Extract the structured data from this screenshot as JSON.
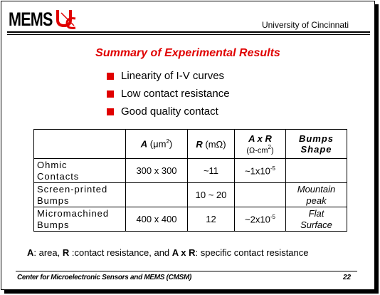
{
  "header": {
    "logo": "MEMS",
    "institution": "University of Cincinnati"
  },
  "title": "Summary of Experimental Results",
  "bullets": [
    "Linearity of I-V curves",
    "Low contact resistance",
    "Good quality contact"
  ],
  "table": {
    "columns": [
      {
        "symbol": "A",
        "unit_open": "(μm",
        "unit_sup": "2",
        "unit_close": ")"
      },
      {
        "symbol": "R",
        "unit": "(mΩ)"
      },
      {
        "symbol": "A x R",
        "unit_open": "(Ω-cm",
        "unit_sup": "2",
        "unit_close": ")"
      },
      {
        "line1": "Bumps",
        "line2": "Shape"
      }
    ],
    "rows": [
      {
        "name1": "Ohmic",
        "name2": "Contacts",
        "area": "300 x 300",
        "resistance": "~11",
        "specific_base": "~1x10",
        "specific_exp": "-5"
      },
      {
        "name1": "Screen-printed",
        "name2": "Bumps",
        "resistance": "10 ~ 20",
        "shape1": "Mountain",
        "shape2": "peak"
      },
      {
        "name1": "Micromachined",
        "name2": "Bumps",
        "area": "400 x 400",
        "resistance": "12",
        "specific_base": "~2x10",
        "specific_exp": "-5",
        "shape1": "Flat",
        "shape2": "Surface"
      }
    ]
  },
  "footnote": [
    {
      "text": "A",
      "bold": true
    },
    {
      "text": ": area, ",
      "bold": false
    },
    {
      "text": "R",
      "bold": true
    },
    {
      "text": " :contact resistance, and ",
      "bold": false
    },
    {
      "text": "A x R",
      "bold": true
    },
    {
      "text": ": specific contact resistance",
      "bold": false
    }
  ],
  "footer": {
    "left": "Center for Microelectronic Sensors and MEMS (CMSM)",
    "page": "22"
  }
}
